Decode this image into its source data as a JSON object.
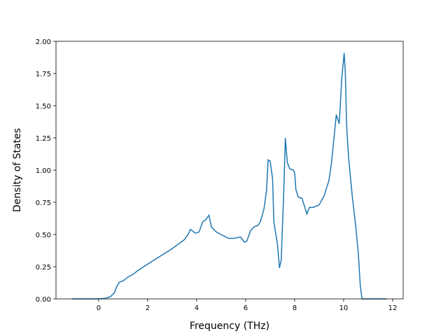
{
  "chart_data": {
    "type": "line",
    "x_label": "Frequency (THz)",
    "y_label": "Density of States",
    "xlim": [
      -1.74,
      12.43
    ],
    "ylim": [
      0,
      2
    ],
    "xticks": [
      0,
      2,
      4,
      6,
      8,
      10,
      12
    ],
    "yticks": [
      {
        "value": 0,
        "label": "0.00"
      },
      {
        "value": 0.25,
        "label": "0.25"
      },
      {
        "value": 0.5,
        "label": "0.50"
      },
      {
        "value": 0.75,
        "label": "0.75"
      },
      {
        "value": 1,
        "label": "1.00"
      },
      {
        "value": 1.25,
        "label": "1.25"
      },
      {
        "value": 1.5,
        "label": "1.50"
      },
      {
        "value": 1.75,
        "label": "1.75"
      },
      {
        "value": 2,
        "label": "2.00"
      }
    ],
    "series": [
      {
        "color": "#1f77b4",
        "x": [
          -1.1,
          0,
          0.3,
          0.5,
          0.65,
          0.75,
          0.85,
          1.0,
          1.2,
          1.4,
          1.6,
          2.0,
          2.5,
          3.0,
          3.5,
          3.65,
          3.75,
          3.95,
          4.1,
          4.25,
          4.35,
          4.5,
          4.6,
          4.8,
          5.0,
          5.3,
          5.5,
          5.8,
          5.95,
          6.05,
          6.2,
          6.35,
          6.5,
          6.6,
          6.75,
          6.85,
          6.92,
          7.0,
          7.1,
          7.15,
          7.3,
          7.38,
          7.45,
          7.55,
          7.62,
          7.7,
          7.8,
          7.95,
          8.0,
          8.05,
          8.15,
          8.3,
          8.45,
          8.5,
          8.6,
          8.75,
          9.0,
          9.2,
          9.4,
          9.5,
          9.7,
          9.82,
          9.92,
          10.02,
          10.07,
          10.12,
          10.2,
          10.35,
          10.5,
          10.6,
          10.68,
          10.75,
          11.75
        ],
        "values": [
          0,
          0,
          0.005,
          0.02,
          0.05,
          0.1,
          0.13,
          0.14,
          0.17,
          0.19,
          0.22,
          0.27,
          0.33,
          0.39,
          0.46,
          0.5,
          0.54,
          0.51,
          0.52,
          0.6,
          0.61,
          0.65,
          0.56,
          0.52,
          0.5,
          0.47,
          0.47,
          0.48,
          0.44,
          0.45,
          0.53,
          0.56,
          0.57,
          0.6,
          0.7,
          0.84,
          1.08,
          1.07,
          0.93,
          0.6,
          0.42,
          0.24,
          0.3,
          0.8,
          1.25,
          1.06,
          1.01,
          1.0,
          0.98,
          0.85,
          0.79,
          0.78,
          0.69,
          0.66,
          0.71,
          0.71,
          0.73,
          0.8,
          0.92,
          1.05,
          1.43,
          1.36,
          1.7,
          1.91,
          1.75,
          1.35,
          1.1,
          0.8,
          0.55,
          0.35,
          0.1,
          0,
          0
        ]
      }
    ]
  }
}
